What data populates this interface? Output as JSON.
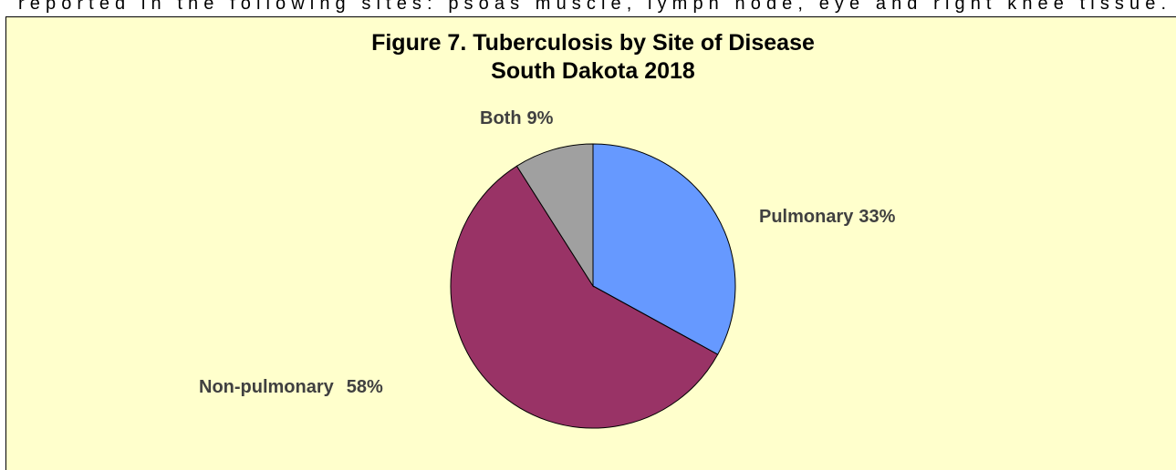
{
  "page_text": "reported in the following sites:  psoas muscle, lymph node, eye and right knee tissue.",
  "chart_data": {
    "type": "pie",
    "title": [
      "Figure 7.  Tuberculosis by Site of Disease",
      "South Dakota 2018"
    ],
    "categories": [
      "Pulmonary",
      "Non-pulmonary",
      "Both"
    ],
    "values": [
      33,
      58,
      9
    ],
    "value_labels": [
      "33%",
      "58%",
      "9%"
    ],
    "colors": [
      "#6699ff",
      "#993366",
      "#a0a0a0"
    ]
  }
}
